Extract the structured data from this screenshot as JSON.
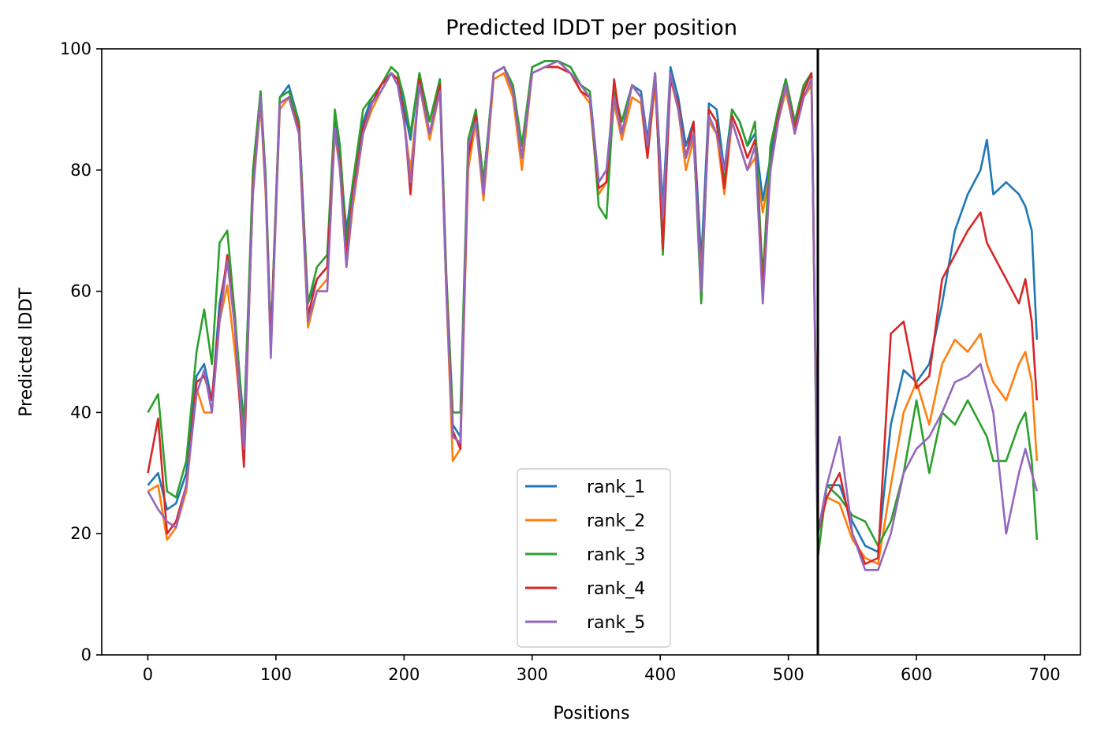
{
  "chart_data": {
    "type": "line",
    "title": "Predicted lDDT per position",
    "xlabel": "Positions",
    "ylabel": "Predicted lDDT",
    "xlim": [
      -36,
      728
    ],
    "ylim": [
      0,
      100
    ],
    "xticks": [
      0,
      100,
      200,
      300,
      400,
      500,
      600,
      700
    ],
    "yticks": [
      0,
      20,
      40,
      60,
      80,
      100
    ],
    "grid": false,
    "legend_placement": "lower center",
    "vertical_line_x": 523,
    "series": [
      {
        "name": "rank_1",
        "color": "#1f77b4",
        "x": [
          0,
          8,
          15,
          22,
          30,
          38,
          44,
          50,
          56,
          62,
          68,
          75,
          82,
          88,
          92,
          96,
          103,
          110,
          118,
          125,
          132,
          140,
          146,
          150,
          155,
          160,
          168,
          175,
          182,
          190,
          195,
          200,
          205,
          212,
          220,
          228,
          233,
          238,
          244,
          250,
          256,
          262,
          270,
          278,
          285,
          292,
          300,
          310,
          320,
          330,
          338,
          345,
          352,
          358,
          364,
          370,
          378,
          385,
          390,
          396,
          402,
          408,
          414,
          420,
          426,
          432,
          438,
          444,
          450,
          456,
          462,
          468,
          474,
          480,
          486,
          492,
          498,
          505,
          512,
          518,
          523,
          530,
          540,
          550,
          560,
          570,
          580,
          590,
          600,
          610,
          620,
          630,
          640,
          650,
          655,
          660,
          670,
          680,
          685,
          690,
          694
        ],
        "y": [
          28,
          30,
          24,
          25,
          30,
          46,
          48,
          42,
          58,
          65,
          55,
          38,
          78,
          93,
          78,
          52,
          92,
          94,
          88,
          58,
          62,
          64,
          88,
          82,
          70,
          78,
          88,
          92,
          94,
          97,
          96,
          90,
          85,
          96,
          88,
          95,
          62,
          38,
          36,
          82,
          90,
          78,
          96,
          97,
          94,
          84,
          97,
          98,
          98,
          97,
          94,
          93,
          78,
          80,
          93,
          88,
          94,
          93,
          85,
          96,
          74,
          97,
          92,
          84,
          88,
          65,
          91,
          90,
          80,
          90,
          88,
          84,
          86,
          75,
          82,
          90,
          95,
          88,
          94,
          96,
          20,
          28,
          28,
          22,
          18,
          17,
          38,
          47,
          45,
          48,
          58,
          70,
          76,
          80,
          85,
          76,
          78,
          76,
          74,
          70,
          52
        ]
      },
      {
        "name": "rank_2",
        "color": "#ff7f0e",
        "x": [
          0,
          8,
          15,
          22,
          30,
          38,
          44,
          50,
          56,
          62,
          68,
          75,
          82,
          88,
          92,
          96,
          103,
          110,
          118,
          125,
          132,
          140,
          146,
          150,
          155,
          160,
          168,
          175,
          182,
          190,
          195,
          200,
          205,
          212,
          220,
          228,
          233,
          238,
          244,
          250,
          256,
          262,
          270,
          278,
          285,
          292,
          300,
          310,
          320,
          330,
          338,
          345,
          352,
          358,
          364,
          370,
          378,
          385,
          390,
          396,
          402,
          408,
          414,
          420,
          426,
          432,
          438,
          444,
          450,
          456,
          462,
          468,
          474,
          480,
          486,
          492,
          498,
          505,
          512,
          518,
          523,
          530,
          540,
          550,
          560,
          570,
          580,
          590,
          600,
          610,
          620,
          630,
          640,
          650,
          655,
          660,
          670,
          680,
          685,
          690,
          694
        ],
        "y": [
          27,
          28,
          19,
          21,
          27,
          44,
          40,
          40,
          55,
          61,
          50,
          35,
          76,
          91,
          76,
          50,
          90,
          92,
          86,
          54,
          60,
          62,
          86,
          80,
          64,
          74,
          86,
          90,
          93,
          96,
          95,
          88,
          80,
          94,
          85,
          93,
          60,
          32,
          34,
          80,
          88,
          75,
          95,
          96,
          92,
          80,
          96,
          97,
          97,
          96,
          93,
          91,
          76,
          78,
          91,
          85,
          92,
          91,
          82,
          94,
          70,
          95,
          90,
          80,
          85,
          62,
          88,
          86,
          76,
          88,
          84,
          80,
          82,
          73,
          80,
          88,
          93,
          86,
          92,
          94,
          20,
          26,
          25,
          19,
          16,
          15,
          28,
          40,
          45,
          38,
          48,
          52,
          50,
          53,
          48,
          45,
          42,
          48,
          50,
          45,
          32
        ]
      },
      {
        "name": "rank_3",
        "color": "#2ca02c",
        "x": [
          0,
          8,
          15,
          22,
          30,
          38,
          44,
          50,
          56,
          62,
          68,
          75,
          82,
          88,
          92,
          96,
          103,
          110,
          118,
          125,
          132,
          140,
          146,
          150,
          155,
          160,
          168,
          175,
          182,
          190,
          195,
          200,
          205,
          212,
          220,
          228,
          233,
          238,
          244,
          250,
          256,
          262,
          270,
          278,
          285,
          292,
          300,
          310,
          320,
          330,
          338,
          345,
          352,
          358,
          364,
          370,
          378,
          385,
          390,
          396,
          402,
          408,
          414,
          420,
          426,
          432,
          438,
          444,
          450,
          456,
          462,
          468,
          474,
          480,
          486,
          492,
          498,
          505,
          512,
          518,
          523,
          530,
          540,
          550,
          560,
          570,
          580,
          590,
          600,
          610,
          620,
          630,
          640,
          650,
          655,
          660,
          670,
          680,
          685,
          690,
          694
        ],
        "y": [
          40,
          43,
          27,
          26,
          32,
          50,
          57,
          48,
          68,
          70,
          56,
          37,
          80,
          93,
          79,
          52,
          92,
          93,
          88,
          58,
          64,
          66,
          90,
          84,
          68,
          78,
          90,
          92,
          94,
          97,
          96,
          92,
          86,
          96,
          88,
          95,
          63,
          40,
          40,
          85,
          90,
          78,
          96,
          97,
          94,
          84,
          97,
          98,
          98,
          97,
          94,
          93,
          74,
          72,
          93,
          88,
          94,
          92,
          84,
          96,
          66,
          96,
          90,
          82,
          86,
          58,
          90,
          88,
          78,
          90,
          88,
          84,
          88,
          62,
          84,
          90,
          95,
          88,
          94,
          96,
          16,
          28,
          26,
          23,
          22,
          18,
          22,
          30,
          42,
          30,
          40,
          38,
          42,
          38,
          36,
          32,
          32,
          38,
          40,
          32,
          19
        ]
      },
      {
        "name": "rank_4",
        "color": "#d62728",
        "x": [
          0,
          8,
          15,
          22,
          30,
          38,
          44,
          50,
          56,
          62,
          68,
          75,
          82,
          88,
          92,
          96,
          103,
          110,
          118,
          125,
          132,
          140,
          146,
          150,
          155,
          160,
          168,
          175,
          182,
          190,
          195,
          200,
          205,
          212,
          220,
          228,
          233,
          238,
          244,
          250,
          256,
          262,
          270,
          278,
          285,
          292,
          300,
          310,
          320,
          330,
          338,
          345,
          352,
          358,
          364,
          370,
          378,
          385,
          390,
          396,
          402,
          408,
          414,
          420,
          426,
          432,
          438,
          444,
          450,
          456,
          462,
          468,
          474,
          480,
          486,
          492,
          498,
          505,
          512,
          518,
          523,
          530,
          540,
          550,
          560,
          570,
          580,
          590,
          600,
          610,
          620,
          630,
          640,
          650,
          655,
          660,
          670,
          680,
          685,
          690,
          694
        ],
        "y": [
          30,
          39,
          20,
          22,
          28,
          45,
          46,
          42,
          56,
          66,
          54,
          31,
          77,
          92,
          77,
          51,
          91,
          92,
          87,
          56,
          62,
          64,
          87,
          81,
          66,
          76,
          87,
          91,
          94,
          96,
          95,
          89,
          76,
          95,
          86,
          94,
          61,
          37,
          34,
          82,
          89,
          76,
          96,
          97,
          93,
          82,
          96,
          97,
          97,
          96,
          93,
          92,
          77,
          78,
          95,
          86,
          94,
          92,
          82,
          96,
          67,
          95,
          91,
          82,
          88,
          60,
          90,
          88,
          77,
          89,
          86,
          82,
          85,
          60,
          80,
          89,
          94,
          87,
          93,
          96,
          20,
          26,
          30,
          20,
          15,
          16,
          53,
          55,
          44,
          46,
          62,
          66,
          70,
          73,
          68,
          66,
          62,
          58,
          62,
          55,
          42
        ]
      },
      {
        "name": "rank_5",
        "color": "#9467bd",
        "x": [
          0,
          8,
          15,
          22,
          30,
          38,
          44,
          50,
          56,
          62,
          68,
          75,
          82,
          88,
          92,
          96,
          103,
          110,
          118,
          125,
          132,
          140,
          146,
          150,
          155,
          160,
          168,
          175,
          182,
          190,
          195,
          200,
          205,
          212,
          220,
          228,
          233,
          238,
          244,
          250,
          256,
          262,
          270,
          278,
          285,
          292,
          300,
          310,
          320,
          330,
          338,
          345,
          352,
          358,
          364,
          370,
          378,
          385,
          390,
          396,
          402,
          408,
          414,
          420,
          426,
          432,
          438,
          444,
          450,
          456,
          462,
          468,
          474,
          480,
          486,
          492,
          498,
          505,
          512,
          518,
          523,
          530,
          540,
          550,
          560,
          570,
          580,
          590,
          600,
          610,
          620,
          630,
          640,
          650,
          655,
          660,
          670,
          680,
          685,
          690,
          694
        ],
        "y": [
          27,
          24,
          22,
          21,
          28,
          43,
          47,
          40,
          55,
          65,
          54,
          34,
          76,
          92,
          77,
          49,
          91,
          92,
          86,
          55,
          60,
          60,
          87,
          80,
          64,
          75,
          86,
          91,
          93,
          96,
          94,
          88,
          78,
          94,
          86,
          93,
          60,
          36,
          35,
          84,
          88,
          76,
          96,
          97,
          93,
          82,
          96,
          97,
          98,
          96,
          94,
          92,
          78,
          80,
          92,
          86,
          94,
          92,
          84,
          96,
          72,
          96,
          90,
          82,
          86,
          60,
          89,
          86,
          80,
          88,
          84,
          80,
          84,
          58,
          80,
          88,
          94,
          86,
          92,
          95,
          20,
          28,
          36,
          20,
          14,
          14,
          20,
          30,
          34,
          36,
          40,
          45,
          46,
          48,
          44,
          40,
          20,
          30,
          34,
          30,
          27
        ]
      }
    ]
  }
}
